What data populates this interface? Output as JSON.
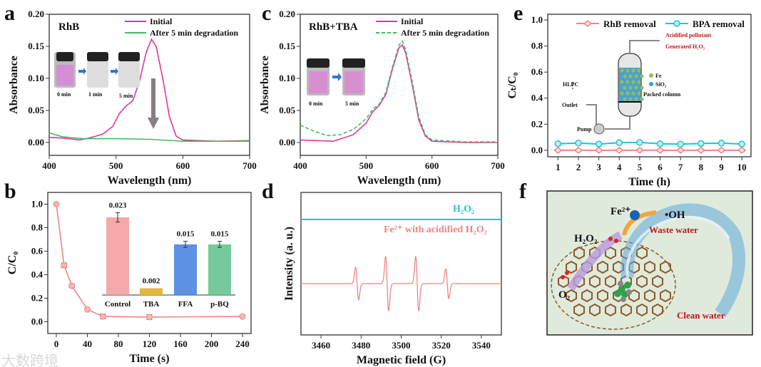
{
  "panels": {
    "a": {
      "letter": "a",
      "tag": "RhB",
      "vial_labels": [
        "0 min",
        "1 min",
        "5 min"
      ]
    },
    "b": {
      "letter": "b"
    },
    "c": {
      "letter": "c",
      "tag": "RhB+TBA",
      "vial_labels": [
        "0 min",
        "5 min"
      ]
    },
    "d": {
      "letter": "d"
    },
    "e": {
      "letter": "e",
      "schematic": {
        "acidified": "Acidified pollutant",
        "generated": "Generated H₂O₂",
        "fe": "Fe",
        "sio2": "SiO₂",
        "packed": "Packed column",
        "hlpc": "HLPC",
        "outlet": "Outlet",
        "pump": "Pump"
      }
    },
    "f": {
      "letter": "f",
      "fe": "Fe²⁺",
      "oh": "•OH",
      "waste": "Waste water",
      "h2o2": "H₂O₂",
      "o2": "O₂",
      "clean": "Clean water"
    }
  },
  "watermark": "大数跨境",
  "colors": {
    "pink": "#e0379e",
    "green": "#3cbf5e",
    "salmon": "#ef8585",
    "teal": "#27c2c8",
    "bar_control": "#f49a9a",
    "bar_tba": "#e3b73a",
    "bar_ffa": "#3f7fdc",
    "bar_pbq": "#5cc18a",
    "panel_f_bg": "#dfeadb"
  },
  "chart_data": [
    {
      "id": "a",
      "type": "line",
      "xlabel": "Wavelength (nm)",
      "ylabel": "Absorbance",
      "xlim": [
        400,
        700
      ],
      "ylim": [
        -0.02,
        0.2
      ],
      "xticks": [
        "400",
        "500",
        "600",
        "700"
      ],
      "xtick_values": [
        400,
        500,
        600,
        700
      ],
      "yticks": [
        "0.00",
        "0.05",
        "0.10",
        "0.15",
        "0.20"
      ],
      "ytick_values": [
        0,
        0.05,
        0.1,
        0.15,
        0.2
      ],
      "legend": "top-right",
      "series": [
        {
          "name": "Initial",
          "color": "#e0379e",
          "dash": false,
          "x": [
            400,
            420,
            445,
            460,
            480,
            495,
            505,
            515,
            525,
            535,
            545,
            553,
            560,
            570,
            580,
            590,
            600,
            650,
            700
          ],
          "y": [
            0.008,
            0.007,
            0.004,
            0.007,
            0.013,
            0.025,
            0.045,
            0.057,
            0.065,
            0.095,
            0.14,
            0.161,
            0.15,
            0.1,
            0.04,
            0.01,
            0.004,
            0.002,
            0.003
          ]
        },
        {
          "name": "After 5 min degradation",
          "color": "#3cbf5e",
          "dash": false,
          "x": [
            400,
            420,
            450,
            500,
            550,
            600,
            700
          ],
          "y": [
            0.015,
            0.009,
            0.006,
            0.006,
            0.005,
            0.002,
            0.002
          ]
        }
      ]
    },
    {
      "id": "c",
      "type": "line",
      "xlabel": "Wavelength (nm)",
      "ylabel": "Absorbance",
      "xlim": [
        400,
        700
      ],
      "ylim": [
        -0.02,
        0.2
      ],
      "xticks": [
        "400",
        "500",
        "600",
        "700"
      ],
      "xtick_values": [
        400,
        500,
        600,
        700
      ],
      "yticks": [
        "0.00",
        "0.05",
        "0.10",
        "0.15",
        "0.20"
      ],
      "ytick_values": [
        0,
        0.05,
        0.1,
        0.15,
        0.2
      ],
      "legend": "top-right",
      "series": [
        {
          "name": "Initial",
          "color": "#e0379e",
          "dash": false,
          "x": [
            400,
            450,
            480,
            500,
            510,
            520,
            530,
            540,
            550,
            555,
            560,
            570,
            580,
            590,
            600,
            650,
            700
          ],
          "y": [
            0.004,
            0.002,
            0.012,
            0.03,
            0.048,
            0.058,
            0.075,
            0.115,
            0.148,
            0.152,
            0.14,
            0.09,
            0.035,
            0.01,
            0.002,
            0.0,
            0.0
          ]
        },
        {
          "name": "After 5 min degradation",
          "color": "#3cbf5e",
          "dash": true,
          "x": [
            400,
            420,
            440,
            460,
            480,
            500,
            510,
            520,
            530,
            540,
            550,
            555,
            560,
            570,
            580,
            590,
            600,
            650,
            700
          ],
          "y": [
            0.027,
            0.018,
            0.011,
            0.012,
            0.02,
            0.037,
            0.052,
            0.06,
            0.078,
            0.118,
            0.152,
            0.158,
            0.145,
            0.095,
            0.04,
            0.012,
            0.004,
            0.001,
            0.001
          ]
        }
      ]
    },
    {
      "id": "b",
      "type": "line",
      "xlabel": "Time (s)",
      "ylabel": "C/C₀",
      "xlim": [
        -11,
        251
      ],
      "ylim": [
        -0.1,
        1.1
      ],
      "xticks": [
        "0",
        "40",
        "80",
        "120",
        "160",
        "200",
        "240"
      ],
      "xtick_values": [
        0,
        40,
        80,
        120,
        160,
        200,
        240
      ],
      "yticks": [
        "0.0",
        "0.2",
        "0.4",
        "0.6",
        "0.8",
        "1.0"
      ],
      "ytick_values": [
        0,
        0.2,
        0.4,
        0.6,
        0.8,
        1.0
      ],
      "series": [
        {
          "name": "C/C0",
          "color": "#ef8585",
          "x": [
            0,
            10,
            20,
            40,
            60,
            120,
            240
          ],
          "y": [
            1.0,
            0.48,
            0.305,
            0.105,
            0.045,
            0.04,
            0.045
          ],
          "err": [
            0,
            0.02,
            0.015,
            0.01,
            0.02,
            0.02,
            0.01
          ]
        }
      ],
      "inset": {
        "type": "bar",
        "categories": [
          "Control",
          "TBA",
          "FFA",
          "p-BQ"
        ],
        "values": [
          0.023,
          0.002,
          0.015,
          0.015
        ],
        "labels": [
          "0.023",
          "0.002",
          "0.015",
          "0.015"
        ],
        "err": [
          0.0014,
          0,
          0.0009,
          0.0009
        ],
        "colors": [
          "#f49a9a",
          "#e3b73a",
          "#3f7fdc",
          "#5cc18a"
        ]
      }
    },
    {
      "id": "d",
      "type": "line",
      "xlabel": "Magnetic field (G)",
      "ylabel": "Intensity (a. u.)",
      "xlim": [
        3450,
        3550
      ],
      "xticks": [
        "3460",
        "3480",
        "3500",
        "3520",
        "3540"
      ],
      "xtick_values": [
        3460,
        3480,
        3500,
        3520,
        3540
      ],
      "series": [
        {
          "name": "H₂O₂",
          "color": "#27c2c8",
          "flat": true
        },
        {
          "name": "Fe²⁺ with acidified H₂O₂",
          "color": "#ef8585",
          "peak_centers": [
            3478,
            3493,
            3508,
            3523
          ],
          "peak_rel_intensity": [
            0.6,
            1.0,
            1.0,
            0.55
          ]
        }
      ]
    },
    {
      "id": "e",
      "type": "line",
      "xlabel": "Time (h)",
      "ylabel": "Cₜ/C₀",
      "xlim": [
        0.5,
        10.45
      ],
      "ylim": [
        -0.05,
        1.044
      ],
      "xticks": [
        "1",
        "2",
        "3",
        "4",
        "5",
        "6",
        "7",
        "8",
        "9",
        "10"
      ],
      "xtick_values": [
        1,
        2,
        3,
        4,
        5,
        6,
        7,
        8,
        9,
        10
      ],
      "yticks": [
        "0.0",
        "0.2",
        "0.4",
        "0.6",
        "0.8",
        "1.0"
      ],
      "ytick_values": [
        0,
        0.2,
        0.4,
        0.6,
        0.8,
        1.0
      ],
      "legend": "top",
      "series": [
        {
          "name": "RhB removal",
          "color": "#ef8585",
          "marker": "diamond",
          "x": [
            1,
            2,
            3,
            4,
            5,
            6,
            7,
            8,
            9,
            10
          ],
          "y": [
            0,
            0,
            0,
            0,
            0,
            0,
            0,
            0,
            0,
            0
          ]
        },
        {
          "name": "BPA removal",
          "color": "#27c2c8",
          "marker": "circle",
          "x": [
            1,
            2,
            3,
            4,
            5,
            6,
            7,
            8,
            9,
            10
          ],
          "y": [
            0.05,
            0.055,
            0.048,
            0.058,
            0.06,
            0.05,
            0.047,
            0.052,
            0.055,
            0.048
          ]
        }
      ]
    }
  ]
}
